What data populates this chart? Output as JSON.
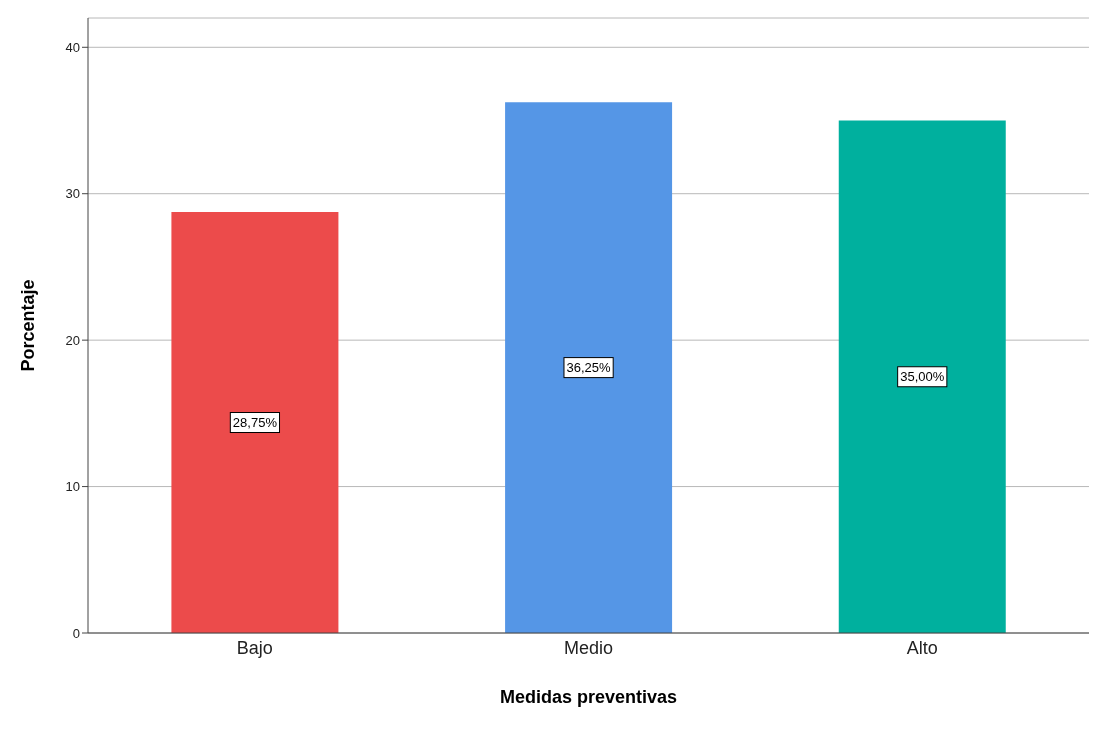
{
  "chart_data": {
    "type": "bar",
    "xlabel": "Medidas preventivas",
    "ylabel": "Porcentaje",
    "categories": [
      "Bajo",
      "Medio",
      "Alto"
    ],
    "values": [
      28.75,
      36.25,
      35.0
    ],
    "colors": [
      "#ec4b4b",
      "#5596e6",
      "#00b09e"
    ],
    "value_labels": [
      "28,75%",
      "36,25%",
      "35,00%"
    ],
    "ylim": [
      0,
      42
    ],
    "yticks": [
      0,
      10,
      20,
      30,
      40
    ],
    "grid": "y"
  }
}
